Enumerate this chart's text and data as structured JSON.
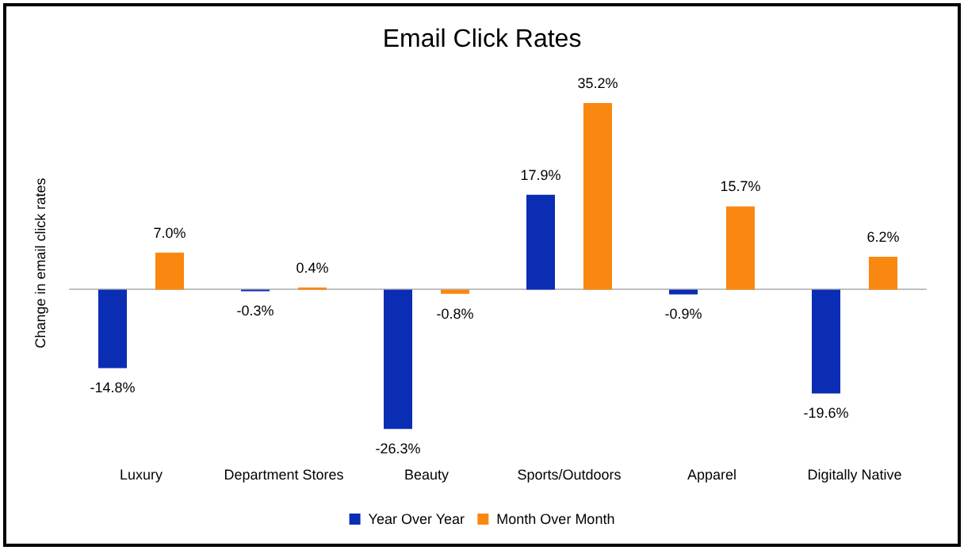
{
  "chart_data": {
    "type": "bar",
    "title": "Email Click Rates",
    "ylabel": "Change in email click rates",
    "categories": [
      "Luxury",
      "Department Stores",
      "Beauty",
      "Sports/Outdoors",
      "Apparel",
      "Digitally Native"
    ],
    "series": [
      {
        "name": "Year Over Year",
        "color": "#0a2db4",
        "values": [
          -14.8,
          -0.3,
          -26.3,
          17.9,
          -0.9,
          -19.6
        ],
        "value_labels": [
          "-14.8%",
          "-0.3%",
          "-26.3%",
          "17.9%",
          "-0.9%",
          "-19.6%"
        ]
      },
      {
        "name": "Month Over Month",
        "color": "#fa870f",
        "values": [
          7.0,
          0.4,
          -0.8,
          35.2,
          15.7,
          6.2
        ],
        "value_labels": [
          "7.0%",
          "0.4%",
          "-0.8%",
          "35.2%",
          "15.7%",
          "6.2%"
        ]
      }
    ],
    "tick_labels": "x",
    "grid": false,
    "legend": "bottom"
  }
}
